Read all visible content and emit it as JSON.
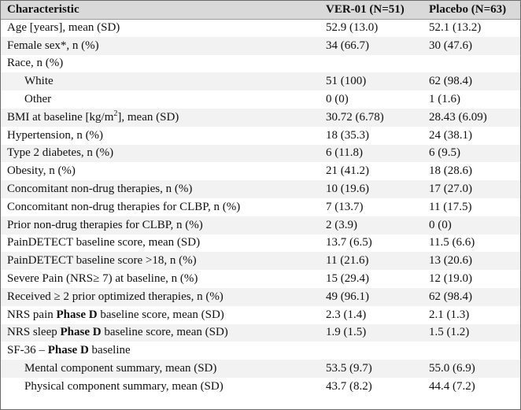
{
  "headers": {
    "characteristic": "Characteristic",
    "ver01": "VER-01 (N=51)",
    "placebo": "Placebo (N=63)"
  },
  "rows": [
    {
      "label": "Age [years], mean (SD)",
      "ver01": "52.9 (13.0)",
      "placebo": "52.1 (13.2)"
    },
    {
      "label": "Female sex*, n (%)",
      "ver01": "34 (66.7)",
      "placebo": "30 (47.6)"
    },
    {
      "label": "Race, n (%)",
      "ver01": "",
      "placebo": ""
    },
    {
      "label": "White",
      "ver01": "51 (100)",
      "placebo": "62 (98.4)"
    },
    {
      "label": "Other",
      "ver01": "0 (0)",
      "placebo": "1 (1.6)"
    },
    {
      "label_pre": "BMI at baseline [kg/m",
      "label_sup": "2",
      "label_post": "], mean (SD)",
      "ver01": "30.72 (6.78)",
      "placebo": "28.43 (6.09)"
    },
    {
      "label": "Hypertension, n (%)",
      "ver01": "18 (35.3)",
      "placebo": "24 (38.1)"
    },
    {
      "label": "Type 2 diabetes, n (%)",
      "ver01": "6 (11.8)",
      "placebo": "6 (9.5)"
    },
    {
      "label": "Obesity, n (%)",
      "ver01": "21 (41.2)",
      "placebo": "18 (28.6)"
    },
    {
      "label": "Concomitant non-drug therapies, n (%)",
      "ver01": "10 (19.6)",
      "placebo": "17 (27.0)"
    },
    {
      "label": "Concomitant non-drug therapies for CLBP, n (%)",
      "ver01": "7 (13.7)",
      "placebo": "11 (17.5)"
    },
    {
      "label": "Prior non-drug therapies for CLBP, n (%)",
      "ver01": "2 (3.9)",
      "placebo": "0 (0)"
    },
    {
      "label": "PainDETECT baseline score, mean (SD)",
      "ver01": "13.7 (6.5)",
      "placebo": "11.5 (6.6)"
    },
    {
      "label": "PainDETECT baseline score >18, n (%)",
      "ver01": "11 (21.6)",
      "placebo": "13 (20.6)"
    },
    {
      "label": "Severe Pain (NRS≥ 7) at baseline, n (%)",
      "ver01": "15 (29.4)",
      "placebo": "12 (19.0)"
    },
    {
      "label": "Received ≥ 2 prior optimized therapies, n (%)",
      "ver01": "49 (96.1)",
      "placebo": "62 (98.4)"
    },
    {
      "label_pre": "NRS pain ",
      "label_bold": "Phase D",
      "label_post": " baseline score, mean (SD)",
      "ver01": "2.3 (1.4)",
      "placebo": "2.1 (1.3)"
    },
    {
      "label_pre": "NRS sleep ",
      "label_bold": "Phase D",
      "label_post": " baseline score, mean (SD)",
      "ver01": "1.9 (1.5)",
      "placebo": "1.5 (1.2)"
    },
    {
      "label_pre": "SF-36 – ",
      "label_bold": "Phase D",
      "label_post": " baseline",
      "ver01": "",
      "placebo": ""
    },
    {
      "label": "Mental component summary, mean (SD)",
      "ver01": "53.5 (9.7)",
      "placebo": "55.0 (6.9)"
    },
    {
      "label": "Physical component summary, mean (SD)",
      "ver01": "43.7 (8.2)",
      "placebo": "44.4 (7.2)"
    }
  ]
}
